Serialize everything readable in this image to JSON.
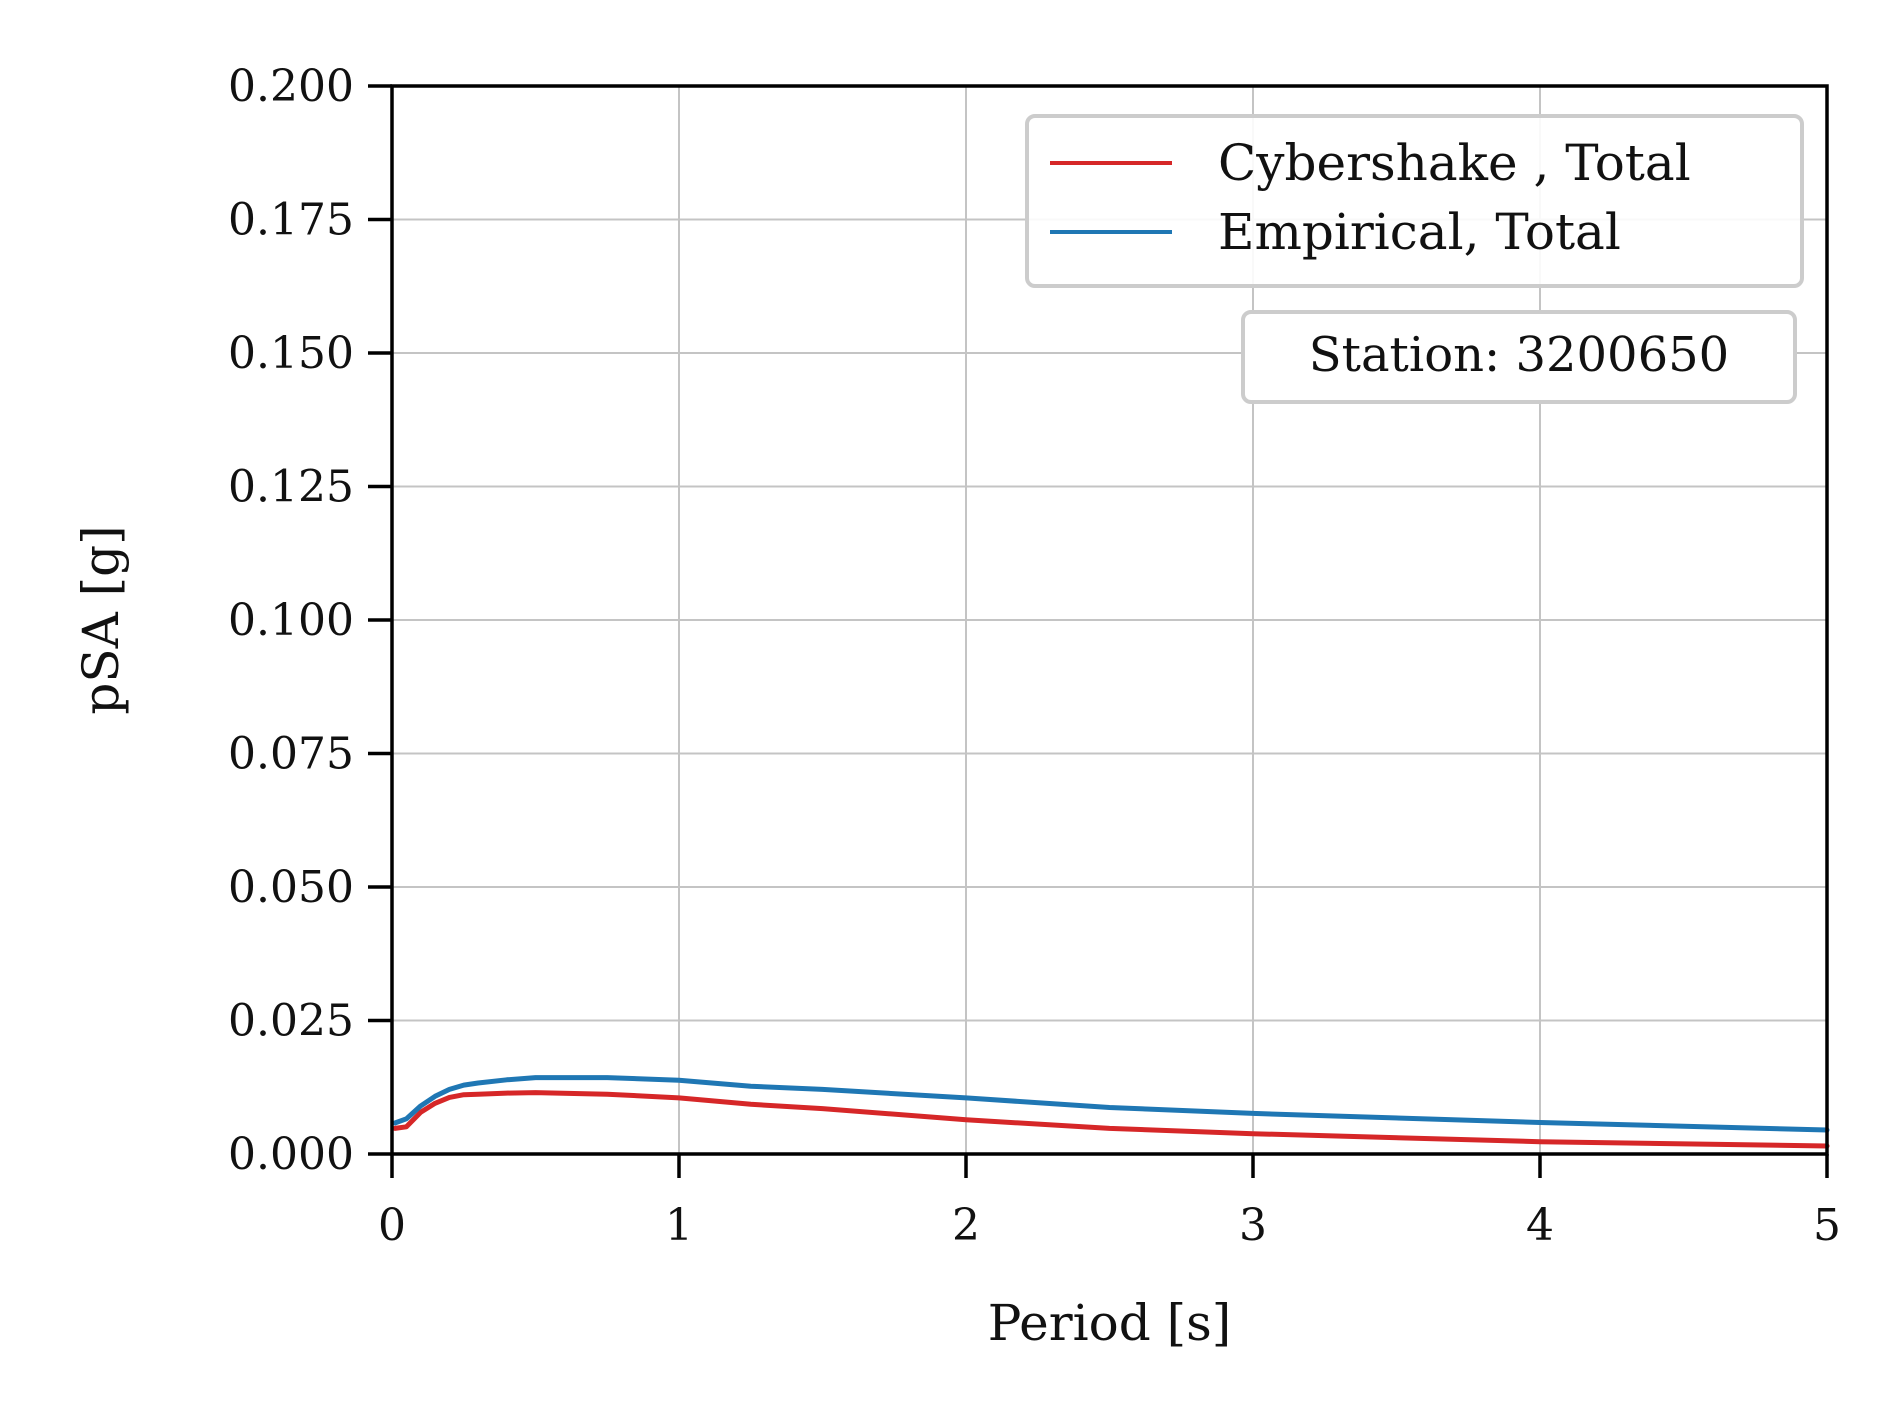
{
  "chart_data": {
    "type": "line",
    "xlabel": "Period [s]",
    "ylabel": "pSA [g]",
    "xlim": [
      0,
      5
    ],
    "ylim": [
      0,
      0.2
    ],
    "xticks": [
      "0",
      "1",
      "2",
      "3",
      "4",
      "5"
    ],
    "yticks": [
      "0.000",
      "0.025",
      "0.050",
      "0.075",
      "0.100",
      "0.125",
      "0.150",
      "0.175",
      "0.200"
    ],
    "grid": true,
    "legend_position": "top-right",
    "annotation": "Station: 3200650",
    "series": [
      {
        "name": "Cybershake , Total",
        "color": "#d62728",
        "x": [
          0.01,
          0.05,
          0.1,
          0.15,
          0.2,
          0.25,
          0.3,
          0.4,
          0.5,
          0.75,
          1.0,
          1.25,
          1.5,
          2.0,
          2.5,
          3.0,
          4.0,
          5.0
        ],
        "y": [
          0.0048,
          0.0051,
          0.0078,
          0.0095,
          0.0106,
          0.0111,
          0.0112,
          0.0114,
          0.0115,
          0.0112,
          0.0105,
          0.0093,
          0.0085,
          0.0064,
          0.0048,
          0.0038,
          0.0023,
          0.0015
        ]
      },
      {
        "name": "Empirical, Total",
        "color": "#1f77b4",
        "x": [
          0.01,
          0.05,
          0.1,
          0.15,
          0.2,
          0.25,
          0.3,
          0.4,
          0.5,
          0.75,
          1.0,
          1.25,
          1.5,
          2.0,
          2.5,
          3.0,
          4.0,
          5.0
        ],
        "y": [
          0.0058,
          0.0066,
          0.009,
          0.0108,
          0.0121,
          0.0129,
          0.0133,
          0.0139,
          0.0143,
          0.0143,
          0.0138,
          0.0127,
          0.0121,
          0.0105,
          0.0087,
          0.0076,
          0.0059,
          0.0045
        ]
      }
    ]
  }
}
